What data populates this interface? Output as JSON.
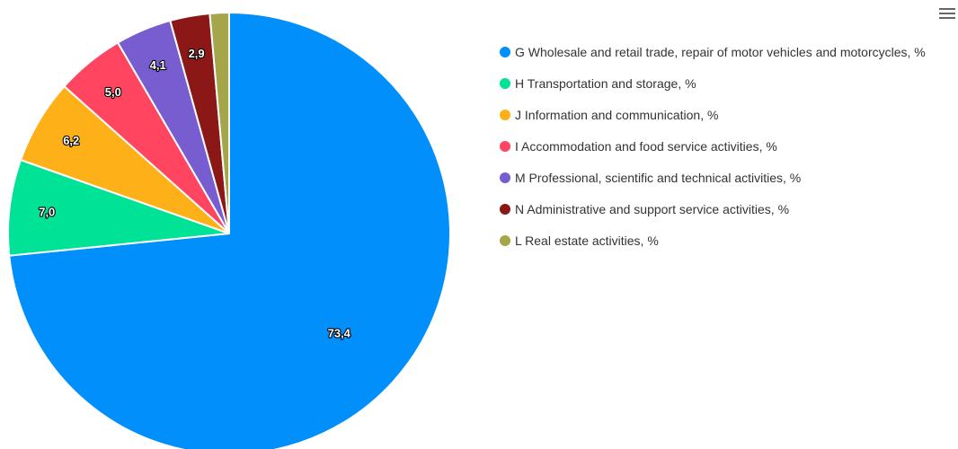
{
  "menu": {
    "icon": "hamburger-menu-icon"
  },
  "chart_data": {
    "type": "pie",
    "title": "",
    "series": [
      {
        "label": "G Wholesale and retail trade, repair of motor vehicles and motorcycles, %",
        "value": 73.4,
        "display": "73,4",
        "color": "#008ffb"
      },
      {
        "label": "H Transportation and storage, %",
        "value": 7.0,
        "display": "7,0",
        "color": "#00e396"
      },
      {
        "label": "J Information and communication, %",
        "value": 6.2,
        "display": "6,2",
        "color": "#feb019"
      },
      {
        "label": "I Accommodation and food service activities, %",
        "value": 5.0,
        "display": "5,0",
        "color": "#ff4560"
      },
      {
        "label": "M Professional, scientific and technical activities, %",
        "value": 4.1,
        "display": "4,1",
        "color": "#775dd0"
      },
      {
        "label": "N Administrative and support service activities, %",
        "value": 2.9,
        "display": "2,9",
        "color": "#8b1717"
      },
      {
        "label": "L Real estate activities, %",
        "value": 1.4,
        "display": "",
        "color": "#a5a64a"
      }
    ],
    "legend_position": "right"
  }
}
